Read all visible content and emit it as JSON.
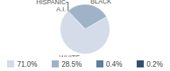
{
  "chart_data": {
    "type": "pie",
    "categories": [
      "WHITE",
      "BLACK",
      "HISPANIC",
      "A.I."
    ],
    "values": [
      71.0,
      28.5,
      0.4,
      0.2
    ],
    "value_labels": [
      "71.0%",
      "28.5%",
      "0.4%",
      "0.2%"
    ],
    "colors": [
      "#d3dce8",
      "#9fb3c8",
      "#5f7f9f",
      "#2f4f70"
    ]
  }
}
